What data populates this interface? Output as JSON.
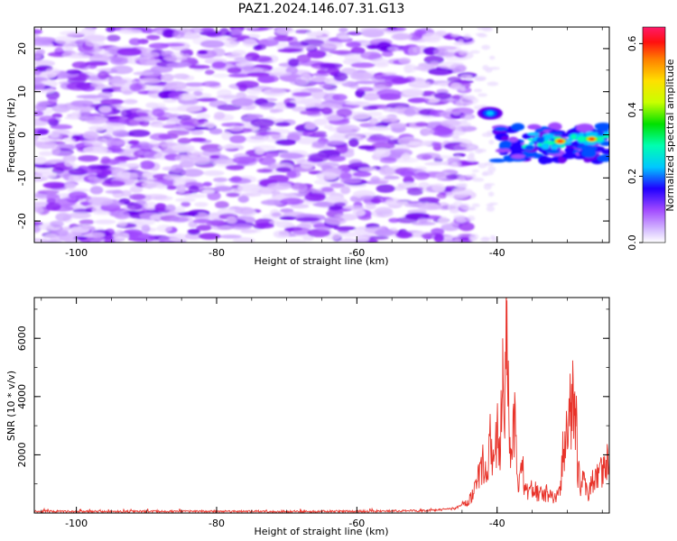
{
  "title": "PAZ1.2024.146.07.31.G13",
  "colors": {
    "snr_line": "#e8332a",
    "cmap_stops": [
      "#ffffff",
      "#dcc8ff",
      "#a24bff",
      "#6a00ee",
      "#2000ff",
      "#0050ff",
      "#00c8ff",
      "#00ffb0",
      "#00e000",
      "#c8ff00",
      "#ffe000",
      "#ff8000",
      "#ff1010",
      "#ff1a6a"
    ]
  },
  "chart_data": [
    {
      "type": "heatmap",
      "xlabel": "Height of straight line (km)",
      "ylabel": "Frequency (Hz)",
      "xlim": [
        -106,
        -24
      ],
      "ylim": [
        -25,
        25
      ],
      "xticks": [
        -100,
        -80,
        -60,
        -40
      ],
      "yticks": [
        -20,
        -10,
        0,
        10,
        20
      ],
      "colorbar": {
        "label": "Normalized spectral amplitude",
        "range": [
          0.0,
          0.65
        ],
        "ticks": [
          "0.0",
          "0.2",
          "0.4",
          "0.6"
        ],
        "tick_values": [
          0.0,
          0.2,
          0.4,
          0.6
        ]
      },
      "features": [
        {
          "region": "broadband noise",
          "x_range": [
            -106,
            -45
          ],
          "y_range": [
            -25,
            25
          ],
          "amplitude": [
            0.0,
            0.22
          ]
        },
        {
          "region": "signal blob",
          "x": -41,
          "y": 5,
          "amplitude": 0.3
        },
        {
          "region": "signal band",
          "x_range": [
            -40,
            -24
          ],
          "y_range": [
            -6,
            2
          ],
          "peak": {
            "x": -31,
            "y": -1.5,
            "amplitude": 0.65
          }
        }
      ]
    },
    {
      "type": "line",
      "xlabel": "Height of straight line (km)",
      "ylabel": "SNR (10 * v/v)",
      "xlim": [
        -106,
        -24
      ],
      "ylim": [
        0,
        7400
      ],
      "xticks": [
        -100,
        -80,
        -60,
        -40
      ],
      "yticks": [
        2000,
        4000,
        6000
      ],
      "series": [
        {
          "x": [
            -106,
            -100,
            -90,
            -80,
            -70,
            -60,
            -50,
            -46,
            -44,
            -43,
            -42,
            -41.5,
            -41,
            -40.5,
            -40,
            -39.6,
            -39.2,
            -38.9,
            -38.6,
            -38.3,
            -38,
            -37.5,
            -37,
            -36.5,
            -36,
            -35,
            -34,
            -33,
            -32,
            -31,
            -30.5,
            -30,
            -29.5,
            -29,
            -28.8,
            -28.5,
            -28,
            -27.5,
            -27,
            -26.5,
            -26,
            -25,
            -24
          ],
          "y": [
            60,
            50,
            55,
            60,
            55,
            60,
            80,
            150,
            400,
            900,
            1800,
            1100,
            2500,
            1400,
            2900,
            1700,
            6000,
            4200,
            7300,
            3000,
            1800,
            2900,
            1000,
            1800,
            700,
            900,
            600,
            700,
            500,
            800,
            2600,
            2400,
            3800,
            4100,
            3600,
            1500,
            900,
            1200,
            700,
            1000,
            1200,
            1500,
            1700
          ]
        }
      ]
    }
  ]
}
